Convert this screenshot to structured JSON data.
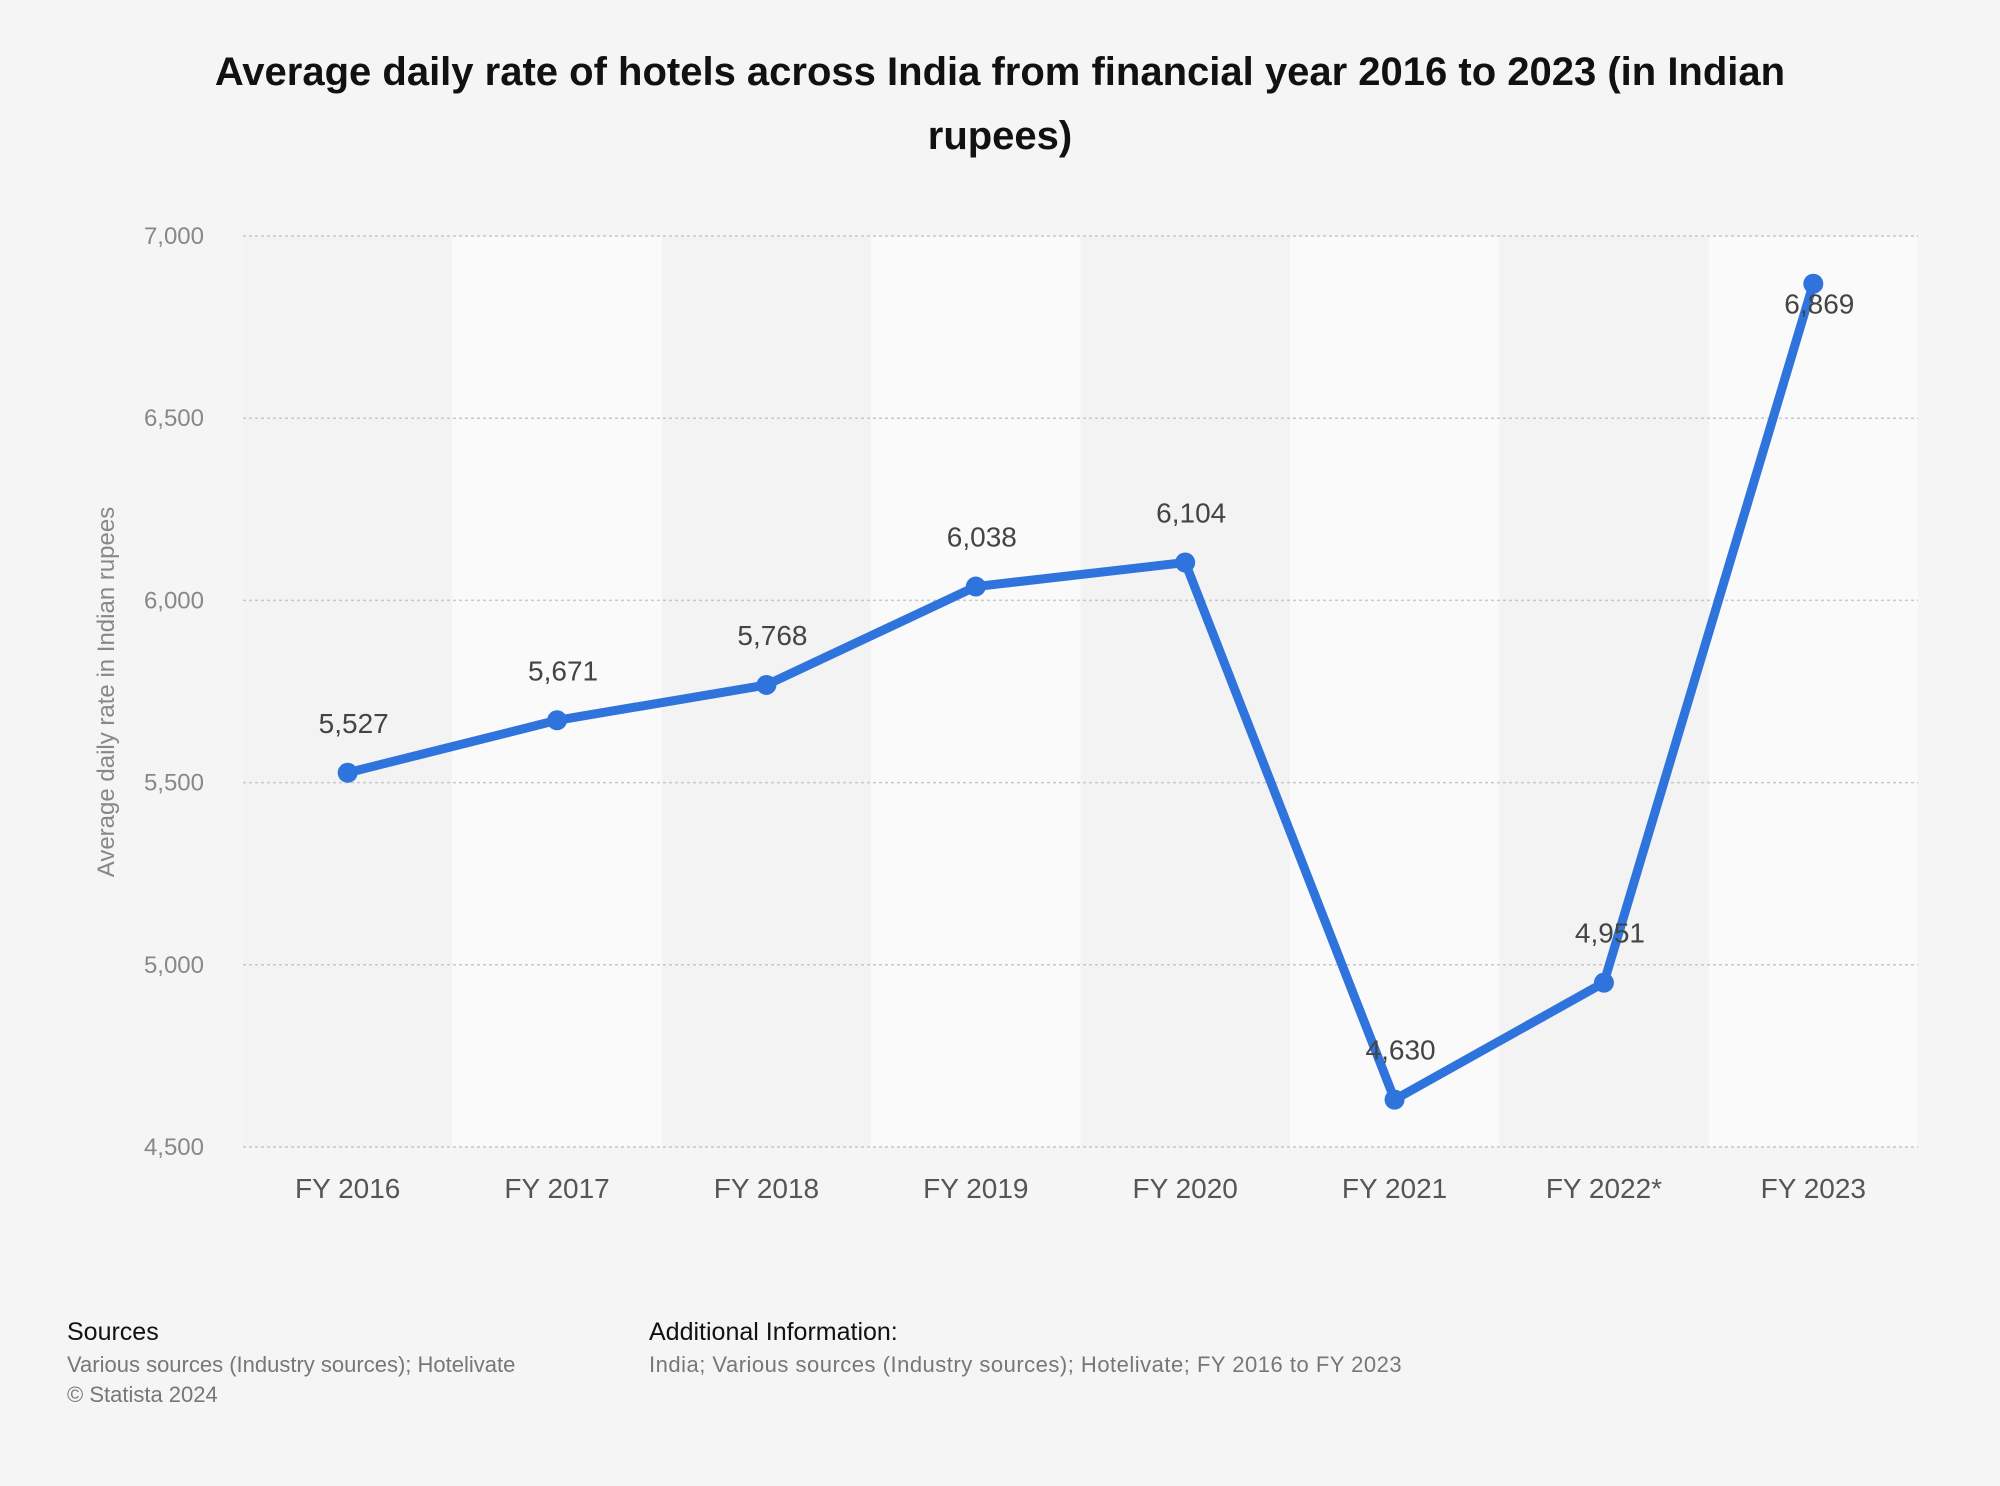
{
  "chart_data": {
    "type": "line",
    "title": "Average daily rate of hotels across India from financial year 2016 to 2023 (in Indian rupees)",
    "ylabel": "Average daily rate in Indian rupees",
    "xlabel": "",
    "categories": [
      "FY 2016",
      "FY 2017",
      "FY 2018",
      "FY 2019",
      "FY 2020",
      "FY 2021",
      "FY 2022*",
      "FY 2023"
    ],
    "values": [
      5527,
      5671,
      5768,
      6038,
      6104,
      4630,
      4951,
      6869
    ],
    "data_labels": [
      "5,527",
      "5,671",
      "5,768",
      "6,038",
      "6,104",
      "4,630",
      "4,951",
      "6,869"
    ],
    "ylim": [
      4500,
      7000
    ],
    "yticks": [
      4500,
      5000,
      5500,
      6000,
      6500,
      7000
    ],
    "ytick_labels": [
      "4,500",
      "5,000",
      "5,500",
      "6,000",
      "6,500",
      "7,000"
    ],
    "grid": true,
    "line_color": "#2f74dc"
  },
  "footer": {
    "sources_heading": "Sources",
    "sources_text": "Various sources (Industry sources); Hotelivate",
    "copyright": "© Statista 2024",
    "additional_heading": "Additional Information:",
    "additional_text": "India; Various sources (Industry sources); Hotelivate; FY 2016 to FY 2023"
  }
}
